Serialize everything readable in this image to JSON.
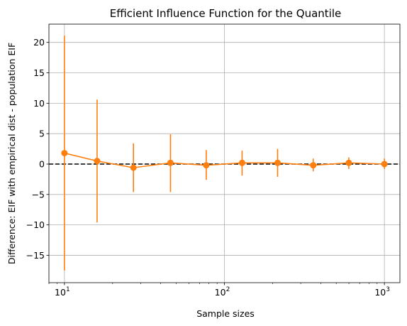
{
  "chart_data": {
    "type": "line",
    "title": "Efficient Influence Function for the Quantile",
    "xlabel": "Sample sizes",
    "ylabel": "Difference: EIF with empirical dist - population EIF",
    "xscale": "log",
    "xlim": [
      8,
      1250
    ],
    "ylim": [
      -19.5,
      23
    ],
    "grid": true,
    "x_ticks": [
      {
        "value": 10,
        "base": "10",
        "exp": "1"
      },
      {
        "value": 100,
        "base": "10",
        "exp": "2"
      },
      {
        "value": 1000,
        "base": "10",
        "exp": "3"
      }
    ],
    "y_ticks": [
      {
        "value": 20,
        "label": "20"
      },
      {
        "value": 15,
        "label": "15"
      },
      {
        "value": 10,
        "label": "10"
      },
      {
        "value": 5,
        "label": "5"
      },
      {
        "value": 0,
        "label": "0"
      },
      {
        "value": -5,
        "label": "−5"
      },
      {
        "value": -10,
        "label": "−10"
      },
      {
        "value": -15,
        "label": "−15"
      }
    ],
    "reference_line": {
      "y": 0,
      "style": "dashed",
      "color": "#000000"
    },
    "series": [
      {
        "color": "#ff7f0e",
        "x": [
          10,
          16,
          27,
          46,
          77,
          129,
          215,
          359,
          599,
          1000
        ],
        "y": [
          1.8,
          0.5,
          -0.6,
          0.2,
          -0.2,
          0.2,
          0.2,
          -0.2,
          0.2,
          0.0
        ],
        "err_low": [
          -17.5,
          -9.6,
          -4.6,
          -4.6,
          -2.6,
          -1.9,
          -2.1,
          -1.2,
          -0.8,
          -0.8
        ],
        "err_high": [
          21.1,
          10.6,
          3.4,
          4.9,
          2.3,
          2.2,
          2.5,
          0.9,
          1.1,
          0.9
        ]
      }
    ]
  }
}
